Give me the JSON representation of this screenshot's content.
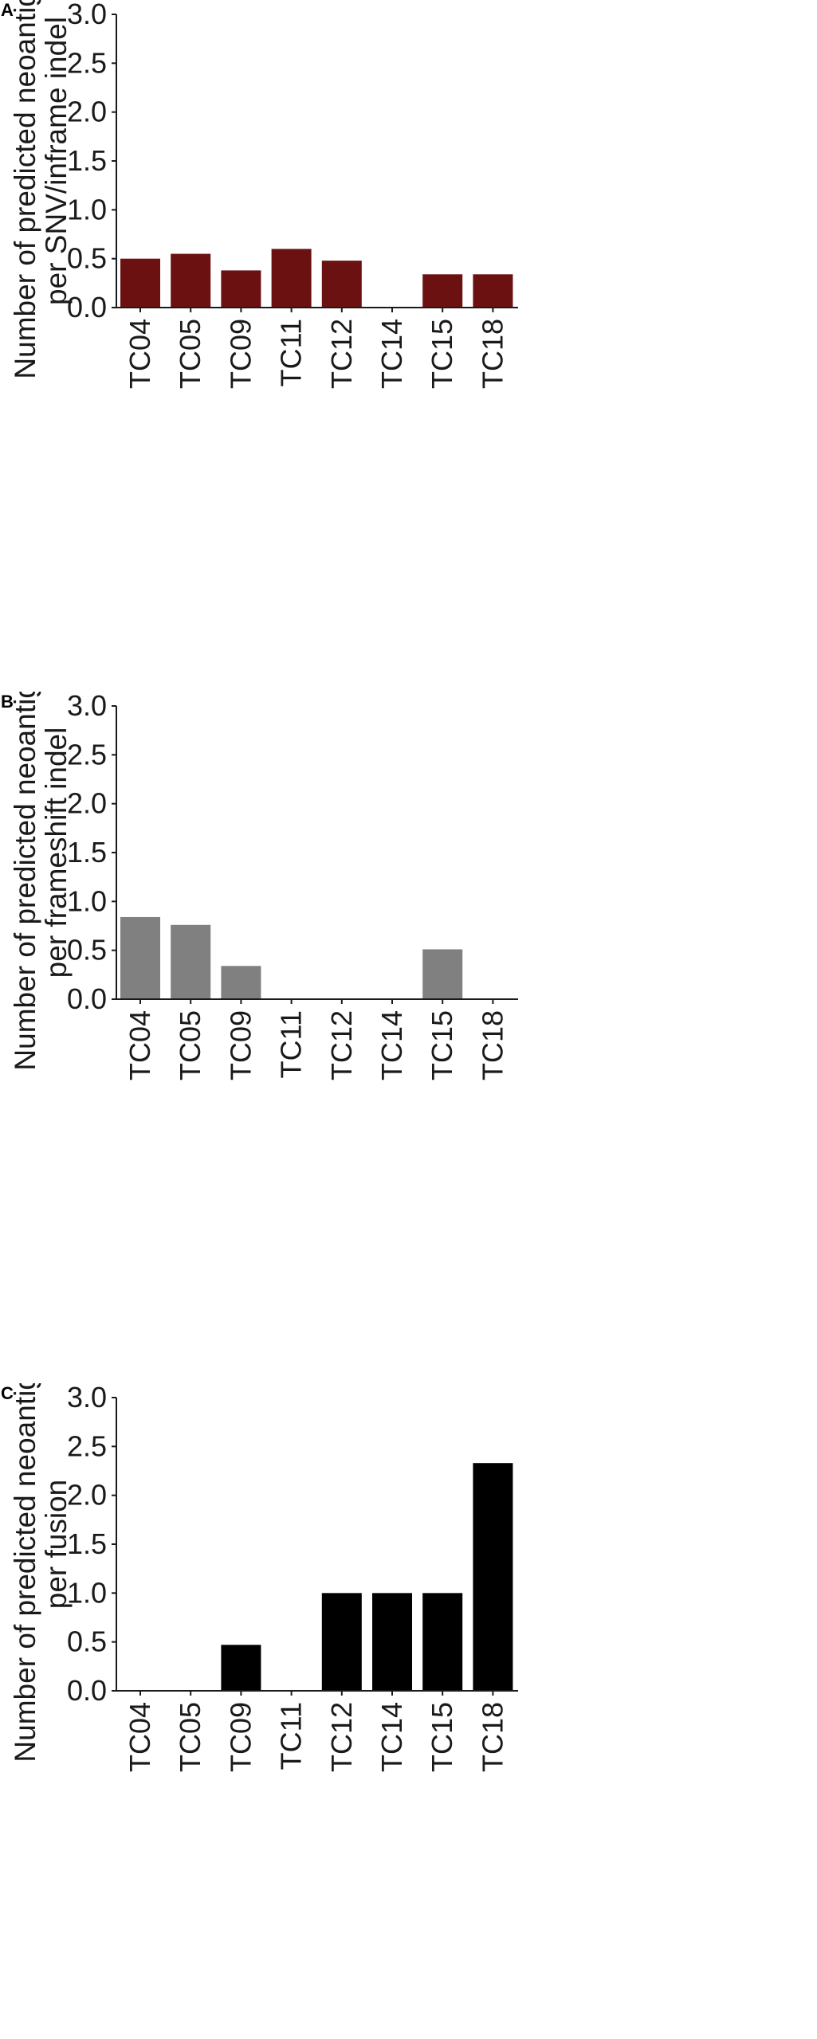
{
  "chart_data": [
    {
      "panel": "A",
      "type": "bar",
      "ylabel": [
        "Number of predicted neoantigens",
        "per SNV/inframe indel"
      ],
      "categories": [
        "TC04",
        "TC05",
        "TC09",
        "TC11",
        "TC12",
        "TC14",
        "TC15",
        "TC18"
      ],
      "values": [
        0.5,
        0.55,
        0.38,
        0.6,
        0.48,
        0,
        0.34,
        0.34
      ],
      "ylim": [
        0,
        3.0
      ],
      "yticks": [
        "0.0",
        "0.5",
        "1.0",
        "1.5",
        "2.0",
        "2.5",
        "3.0"
      ],
      "color": "#6b1111",
      "grid": false
    },
    {
      "panel": "B",
      "type": "bar",
      "ylabel": [
        "Number of predicted neoantigens",
        "per frameshift indel"
      ],
      "categories": [
        "TC04",
        "TC05",
        "TC09",
        "TC11",
        "TC12",
        "TC14",
        "TC15",
        "TC18"
      ],
      "values": [
        0.84,
        0.76,
        0.34,
        0,
        0,
        0,
        0.51,
        0
      ],
      "ylim": [
        0,
        3.0
      ],
      "yticks": [
        "0.0",
        "0.5",
        "1.0",
        "1.5",
        "2.0",
        "2.5",
        "3.0"
      ],
      "color": "#808080",
      "grid": false
    },
    {
      "panel": "C",
      "type": "bar",
      "ylabel": [
        "Number of predicted neoantigens",
        "per fusion"
      ],
      "categories": [
        "TC04",
        "TC05",
        "TC09",
        "TC11",
        "TC12",
        "TC14",
        "TC15",
        "TC18"
      ],
      "values": [
        0,
        0,
        0.47,
        0,
        1.0,
        1.0,
        1.0,
        2.33
      ],
      "ylim": [
        0,
        3.0
      ],
      "yticks": [
        "0.0",
        "0.5",
        "1.0",
        "1.5",
        "2.0",
        "2.5",
        "3.0"
      ],
      "color": "#000000",
      "grid": false
    }
  ]
}
